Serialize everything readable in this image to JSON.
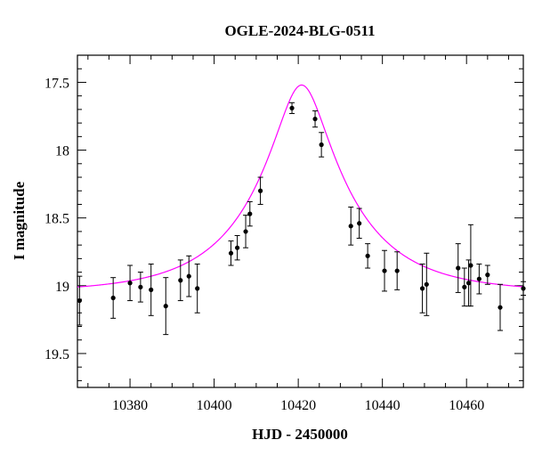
{
  "chart_data": {
    "type": "scatter",
    "title": "OGLE-2024-BLG-0511",
    "xlabel": "HJD - 2450000",
    "ylabel": "I magnitude",
    "xlim": [
      10367.5,
      10473.5
    ],
    "ylim": [
      19.75,
      17.3
    ],
    "y_inverted": true,
    "x_ticks": [
      10380,
      10400,
      10420,
      10440,
      10460
    ],
    "x_tick_labels": [
      "10380",
      "10400",
      "10420",
      "10440",
      "10460"
    ],
    "y_ticks": [
      17.5,
      18,
      18.5,
      19,
      19.5
    ],
    "y_tick_labels": [
      "17.5",
      "18",
      "18.5",
      "19",
      "19.5"
    ],
    "x_minor_step": 5,
    "y_minor_step": 0.1,
    "grid": false,
    "points": [
      {
        "x": 10368.0,
        "y": 19.11,
        "err": 0.18
      },
      {
        "x": 10376.0,
        "y": 19.09,
        "err": 0.15
      },
      {
        "x": 10380.0,
        "y": 18.98,
        "err": 0.13
      },
      {
        "x": 10382.5,
        "y": 19.01,
        "err": 0.11
      },
      {
        "x": 10385.0,
        "y": 19.03,
        "err": 0.19
      },
      {
        "x": 10388.5,
        "y": 19.15,
        "err": 0.21
      },
      {
        "x": 10392.0,
        "y": 18.96,
        "err": 0.15
      },
      {
        "x": 10394.0,
        "y": 18.93,
        "err": 0.15
      },
      {
        "x": 10396.0,
        "y": 19.02,
        "err": 0.18
      },
      {
        "x": 10404.0,
        "y": 18.76,
        "err": 0.09
      },
      {
        "x": 10405.5,
        "y": 18.72,
        "err": 0.09
      },
      {
        "x": 10407.5,
        "y": 18.6,
        "err": 0.12
      },
      {
        "x": 10408.5,
        "y": 18.47,
        "err": 0.09
      },
      {
        "x": 10411.0,
        "y": 18.3,
        "err": 0.1
      },
      {
        "x": 10418.5,
        "y": 17.69,
        "err": 0.04
      },
      {
        "x": 10424.0,
        "y": 17.77,
        "err": 0.06
      },
      {
        "x": 10425.5,
        "y": 17.96,
        "err": 0.09
      },
      {
        "x": 10432.5,
        "y": 18.56,
        "err": 0.14
      },
      {
        "x": 10434.5,
        "y": 18.54,
        "err": 0.11
      },
      {
        "x": 10436.5,
        "y": 18.78,
        "err": 0.09
      },
      {
        "x": 10440.5,
        "y": 18.89,
        "err": 0.15
      },
      {
        "x": 10443.5,
        "y": 18.89,
        "err": 0.14
      },
      {
        "x": 10449.5,
        "y": 19.02,
        "err": 0.18
      },
      {
        "x": 10450.5,
        "y": 18.99,
        "err": 0.23
      },
      {
        "x": 10458.0,
        "y": 18.87,
        "err": 0.18
      },
      {
        "x": 10459.5,
        "y": 19.01,
        "err": 0.14
      },
      {
        "x": 10460.5,
        "y": 18.98,
        "err": 0.17
      },
      {
        "x": 10461.0,
        "y": 18.85,
        "err": 0.3
      },
      {
        "x": 10463.0,
        "y": 18.95,
        "err": 0.11
      },
      {
        "x": 10465.0,
        "y": 18.92,
        "err": 0.07
      },
      {
        "x": 10468.0,
        "y": 19.16,
        "err": 0.17
      },
      {
        "x": 10473.5,
        "y": 19.02,
        "err": 0.05
      }
    ],
    "model_curve": {
      "t0": 10420.8,
      "u0": 0.25,
      "tE": 23.0,
      "baseline_mag": 19.05,
      "color": "#ff00ff"
    },
    "point_color": "#000000"
  }
}
